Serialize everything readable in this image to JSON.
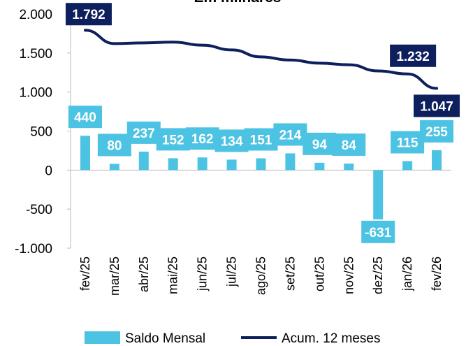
{
  "chart_data": {
    "type": "bar-line",
    "title": "Em milhares",
    "categories": [
      "fev/25",
      "mar/25",
      "abr/25",
      "mai/25",
      "jun/25",
      "jul/25",
      "ago/25",
      "set/25",
      "out/25",
      "nov/25",
      "dez/25",
      "jan/26",
      "fev/26"
    ],
    "series": [
      {
        "name": "Saldo Mensal",
        "type": "bar",
        "color": "#4dc3e3",
        "values": [
          440,
          80,
          237,
          152,
          162,
          134,
          151,
          214,
          94,
          84,
          -631,
          115,
          255
        ]
      },
      {
        "name": "Acum. 12 meses",
        "type": "line",
        "color": "#0d1f5c",
        "values": [
          1792,
          1620,
          1630,
          1640,
          1600,
          1540,
          1450,
          1410,
          1370,
          1350,
          1270,
          1232,
          1047
        ],
        "value_labels": [
          "1.792",
          null,
          null,
          null,
          null,
          null,
          null,
          null,
          null,
          null,
          null,
          "1.232",
          "1.047"
        ]
      }
    ],
    "ylim": [
      -1000,
      2000
    ],
    "yticks": [
      {
        "value": -1000,
        "label": "-1.000"
      },
      -500,
      0,
      500,
      {
        "value": 1000,
        "label": "1.000"
      },
      {
        "value": 1500,
        "label": "1.500"
      },
      {
        "value": 2000,
        "label": "2.000"
      }
    ],
    "legend": "bottom"
  }
}
